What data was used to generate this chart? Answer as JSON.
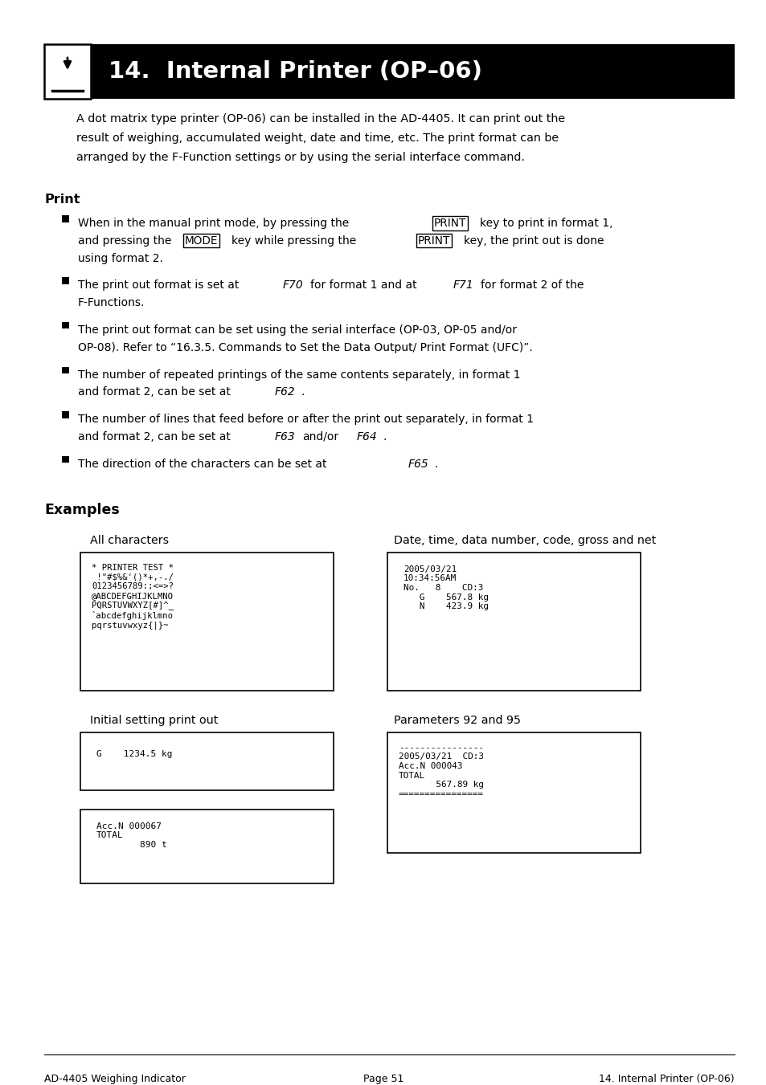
{
  "page_bg": "#ffffff",
  "header_bg": "#000000",
  "header_text_color": "#ffffff",
  "header_title": "14.  Internal Printer (OP–06)",
  "body_text_color": "#000000",
  "intro_text": "A dot matrix type printer (OP-06) can be installed in the AD-4405. It can print out the\nresult of weighing, accumulated weight, date and time, etc. The print format can be\narranged by the F-Function settings or by using the serial interface command.",
  "section_print": "Print",
  "section_examples": "Examples",
  "ex1_title": "All characters",
  "ex1_content": "* PRINTER TEST *\n !\"#$%&'()*+,-./\n0123456789:;<=>?\n@ABCDEFGHIJKLMNO\nPQRSTUVWXYZ[#]^_\n`abcdefghijklmno\npqrstuvwxyz{|}~",
  "ex2_title": "Date, time, data number, code, gross and net",
  "ex2_content": "2005/03/21\n10:34:56AM\nNo.   8    CD:3\n   G    567.8 kg\n   N    423.9 kg",
  "ex3_title": "Initial setting print out",
  "ex3_content": "G    1234.5 kg",
  "ex4_title": "Parameters 92 and 95",
  "ex4_content": "----------------\n2005/03/21  CD:3\nAcc.N 000043\nTOTAL\n       567.89 kg\n================",
  "ex5_content": "Acc.N 000067\nTOTAL\n        890 t",
  "footer_left": "AD-4405 Weighing Indicator",
  "footer_center": "Page 51",
  "footer_right": "14. Internal Printer (OP-06)"
}
